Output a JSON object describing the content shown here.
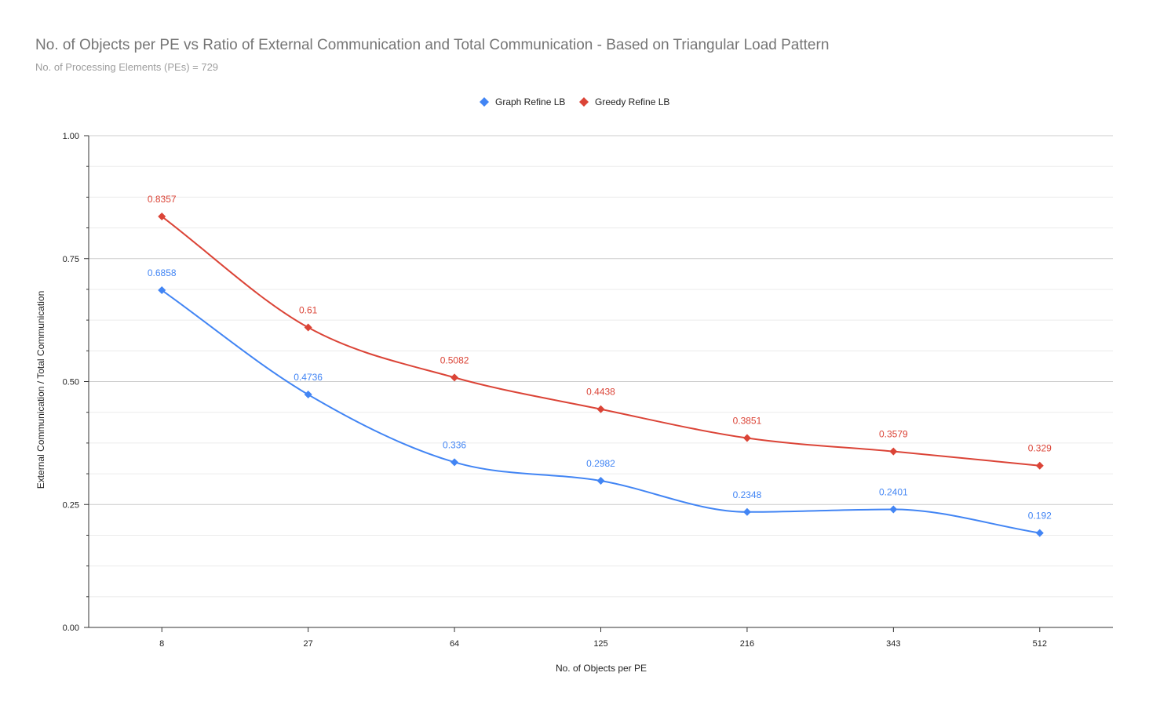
{
  "chart_data": {
    "type": "line",
    "title": "No. of Objects per PE vs Ratio of External Communication and Total Communication - Based on Triangular Load Pattern",
    "subtitle": "No. of Processing Elements (PEs) = 729",
    "xlabel": "No. of Objects per PE",
    "ylabel": "External Communication / Total Communication",
    "categories": [
      "8",
      "27",
      "64",
      "125",
      "216",
      "343",
      "512"
    ],
    "ylim": [
      0,
      1
    ],
    "yticks": [
      "0.00",
      "0.25",
      "0.50",
      "0.75",
      "1.00"
    ],
    "grid": true,
    "legend_position": "top",
    "series": [
      {
        "name": "Graph Refine LB",
        "color": "#4285f4",
        "marker": "diamond",
        "values": [
          0.6858,
          0.4736,
          0.336,
          0.2982,
          0.2348,
          0.2401,
          0.192
        ],
        "labels": [
          "0.6858",
          "0.4736",
          "0.336",
          "0.2982",
          "0.2348",
          "0.2401",
          "0.192"
        ]
      },
      {
        "name": "Greedy Refine LB",
        "color": "#db4437",
        "marker": "diamond",
        "values": [
          0.8357,
          0.61,
          0.5082,
          0.4438,
          0.3851,
          0.3579,
          0.329
        ],
        "labels": [
          "0.8357",
          "0.61",
          "0.5082",
          "0.4438",
          "0.3851",
          "0.3579",
          "0.329"
        ]
      }
    ]
  }
}
